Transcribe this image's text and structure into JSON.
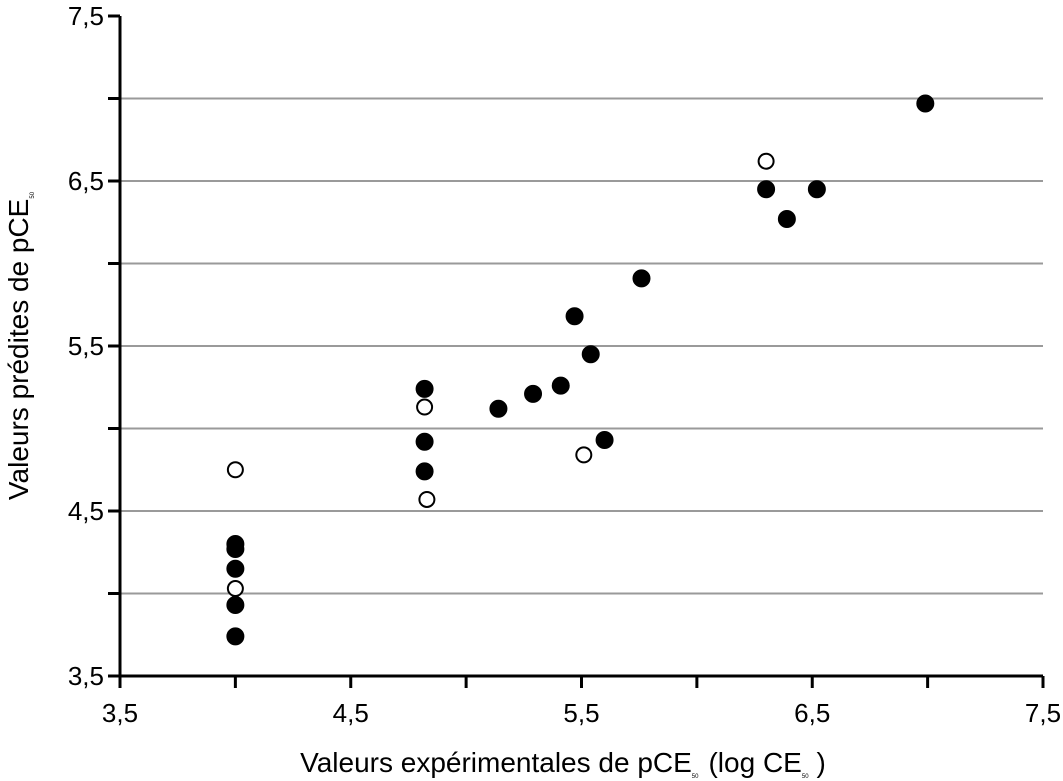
{
  "chart_data": {
    "type": "scatter",
    "title": "",
    "xlabel": "Valeurs expérimentales de pCE",
    "xlabel_sub": "50",
    "xlabel_paren": "(log CE",
    "xlabel_paren_sub": "50",
    "xlabel_close": ")",
    "ylabel": "Valeurs prédites de pCE",
    "ylabel_sub": "50",
    "xlim": [
      3.5,
      7.5
    ],
    "ylim": [
      3.5,
      7.5
    ],
    "x_ticks": [
      3.5,
      4.0,
      4.5,
      5.0,
      5.5,
      6.0,
      6.5,
      7.0,
      7.5
    ],
    "x_tick_labels": [
      "3,5",
      "4,5",
      "5,5",
      "6,5",
      "7,5"
    ],
    "y_ticks": [
      3.5,
      4.0,
      4.5,
      5.0,
      5.5,
      6.0,
      6.5,
      7.0,
      7.5
    ],
    "y_tick_labels": [
      "3,5",
      "4,5",
      "5,5",
      "6,5",
      "7,5"
    ],
    "grid": "horizontal",
    "series": [
      {
        "name": "filled",
        "marker": "filled-circle",
        "color": "#000000",
        "points": [
          [
            4.0,
            3.74
          ],
          [
            4.0,
            3.93
          ],
          [
            4.0,
            4.15
          ],
          [
            4.0,
            4.27
          ],
          [
            4.0,
            4.3
          ],
          [
            4.82,
            5.24
          ],
          [
            4.82,
            4.92
          ],
          [
            4.82,
            4.74
          ],
          [
            5.14,
            5.12
          ],
          [
            5.29,
            5.21
          ],
          [
            5.41,
            5.26
          ],
          [
            5.47,
            5.68
          ],
          [
            5.54,
            5.45
          ],
          [
            5.6,
            4.93
          ],
          [
            5.76,
            5.91
          ],
          [
            6.3,
            6.45
          ],
          [
            6.39,
            6.27
          ],
          [
            6.52,
            6.45
          ],
          [
            6.99,
            6.97
          ]
        ]
      },
      {
        "name": "open",
        "marker": "open-circle",
        "color": "#000000",
        "points": [
          [
            4.0,
            4.75
          ],
          [
            4.0,
            4.03
          ],
          [
            4.82,
            5.13
          ],
          [
            4.83,
            4.57
          ],
          [
            5.51,
            4.84
          ],
          [
            6.3,
            6.62
          ]
        ]
      }
    ]
  }
}
